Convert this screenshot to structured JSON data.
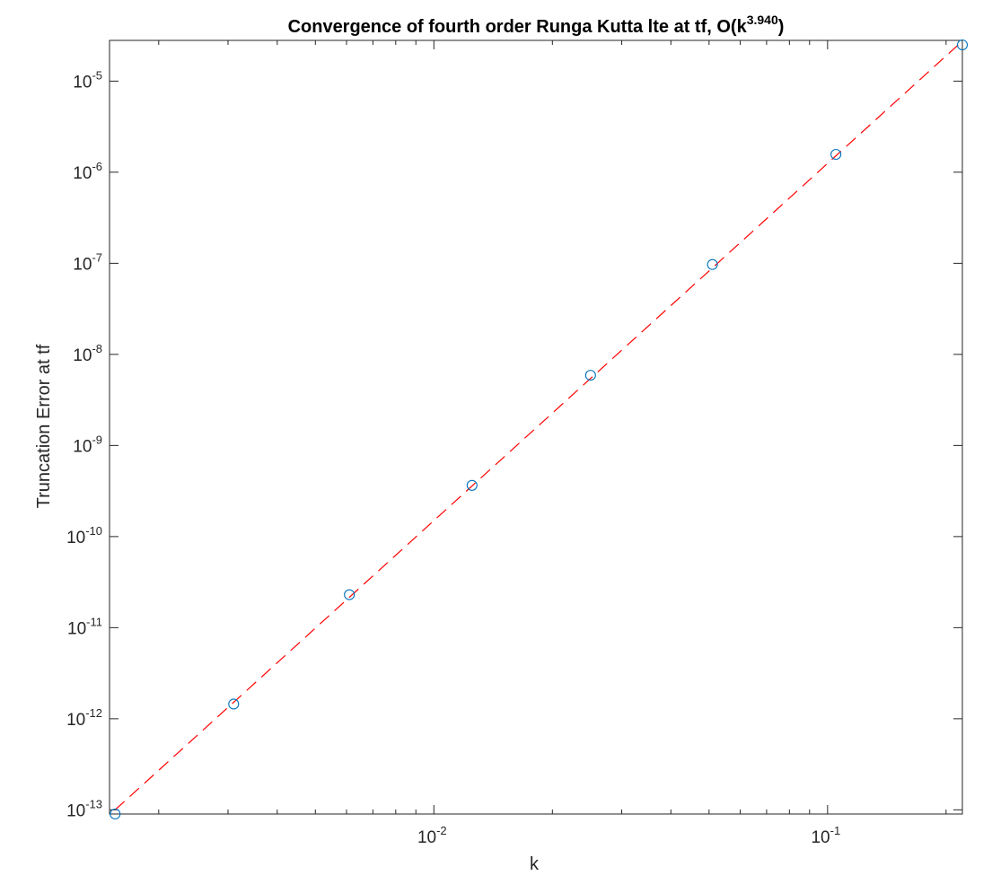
{
  "chart_data": {
    "type": "scatter",
    "title": {
      "main": "Convergence of fourth order Runga Kutta lte at tf, O(k",
      "exponent": "3.940",
      "close": ")"
    },
    "xlabel": "k",
    "ylabel": "Truncation Error at tf",
    "xscale": "log",
    "yscale": "log",
    "xlim": [
      0.0015,
      0.22
    ],
    "ylim": [
      9e-14,
      2.8e-05
    ],
    "grid": false,
    "x_ticks": [
      {
        "value": 0.01,
        "base": "10",
        "exp": "-2"
      },
      {
        "value": 0.1,
        "base": "10",
        "exp": "-1"
      }
    ],
    "y_ticks": [
      {
        "value": 1e-13,
        "base": "10",
        "exp": "-13"
      },
      {
        "value": 1e-12,
        "base": "10",
        "exp": "-12"
      },
      {
        "value": 1e-11,
        "base": "10",
        "exp": "-11"
      },
      {
        "value": 1e-10,
        "base": "10",
        "exp": "-10"
      },
      {
        "value": 1e-09,
        "base": "10",
        "exp": "-9"
      },
      {
        "value": 1e-08,
        "base": "10",
        "exp": "-8"
      },
      {
        "value": 1e-07,
        "base": "10",
        "exp": "-7"
      },
      {
        "value": 1e-06,
        "base": "10",
        "exp": "-6"
      },
      {
        "value": 1e-05,
        "base": "10",
        "exp": "-5"
      }
    ],
    "series": [
      {
        "marker": "circle",
        "color": "#0072BD",
        "x": [
          0.00155,
          0.0031,
          0.0061,
          0.0125,
          0.025,
          0.051,
          0.105,
          0.22
        ],
        "y": [
          9e-14,
          1.45e-12,
          2.3e-11,
          3.65e-10,
          5.9e-09,
          9.7e-08,
          1.57e-06,
          2.5e-05
        ]
      },
      {
        "line_style": "dashed",
        "color": "#FF0000",
        "x": [
          0.00155,
          0.22
        ],
        "y": [
          1e-13,
          2.75e-05
        ]
      }
    ]
  }
}
